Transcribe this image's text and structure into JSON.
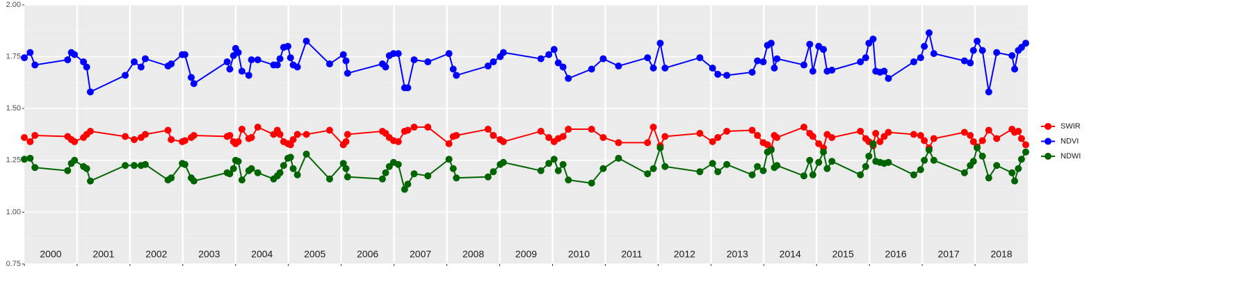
{
  "chart_data": {
    "type": "line",
    "x": [
      2000.0,
      2000.11,
      2000.2,
      2000.82,
      2000.89,
      2000.95,
      2001.12,
      2001.18,
      2001.25,
      2001.91,
      2002.08,
      2002.21,
      2002.29,
      2002.72,
      2002.78,
      2002.99,
      2003.04,
      2003.16,
      2003.21,
      2003.84,
      2003.89,
      2003.96,
      2004.0,
      2004.05,
      2004.12,
      2004.25,
      2004.3,
      2004.42,
      2004.72,
      2004.79,
      2004.84,
      2004.91,
      2004.99,
      2005.04,
      2005.09,
      2005.17,
      2005.34,
      2005.78,
      2006.04,
      2006.09,
      2006.12,
      2006.78,
      2006.84,
      2006.91,
      2006.99,
      2007.08,
      2007.2,
      2007.26,
      2007.38,
      2007.64,
      2008.04,
      2008.12,
      2008.18,
      2008.78,
      2008.88,
      2009.01,
      2009.07,
      2009.78,
      2009.93,
      2010.03,
      2010.11,
      2010.2,
      2010.3,
      2010.74,
      2010.96,
      2011.25,
      2011.8,
      2011.91,
      2012.04,
      2012.13,
      2012.79,
      2013.03,
      2013.13,
      2013.3,
      2013.78,
      2013.88,
      2013.99,
      2014.07,
      2014.14,
      2014.2,
      2014.25,
      2014.76,
      2014.87,
      2014.93,
      2015.04,
      2015.13,
      2015.2,
      2015.29,
      2015.83,
      2015.93,
      2015.99,
      2016.07,
      2016.12,
      2016.2,
      2016.28,
      2016.36,
      2016.84,
      2016.97,
      2017.04,
      2017.13,
      2017.22,
      2017.8,
      2017.91,
      2017.97,
      2018.04,
      2018.14,
      2018.26,
      2018.41,
      2018.7,
      2018.75,
      2018.82,
      2018.88,
      2018.96
    ],
    "series": [
      {
        "name": "SWIR",
        "color": "#ff0000",
        "values": [
          1.36,
          1.34,
          1.37,
          1.365,
          1.35,
          1.34,
          1.36,
          1.375,
          1.39,
          1.365,
          1.35,
          1.36,
          1.375,
          1.395,
          1.35,
          1.34,
          1.345,
          1.36,
          1.37,
          1.365,
          1.37,
          1.34,
          1.33,
          1.34,
          1.4,
          1.355,
          1.36,
          1.41,
          1.375,
          1.395,
          1.375,
          1.34,
          1.33,
          1.325,
          1.35,
          1.375,
          1.375,
          1.395,
          1.325,
          1.34,
          1.375,
          1.39,
          1.38,
          1.36,
          1.345,
          1.34,
          1.39,
          1.395,
          1.41,
          1.41,
          1.33,
          1.365,
          1.37,
          1.4,
          1.37,
          1.35,
          1.34,
          1.39,
          1.36,
          1.34,
          1.355,
          1.365,
          1.4,
          1.4,
          1.36,
          1.335,
          1.335,
          1.41,
          1.32,
          1.365,
          1.38,
          1.34,
          1.36,
          1.39,
          1.395,
          1.37,
          1.335,
          1.325,
          1.305,
          1.37,
          1.36,
          1.41,
          1.38,
          1.365,
          1.33,
          1.31,
          1.375,
          1.36,
          1.39,
          1.355,
          1.34,
          1.32,
          1.38,
          1.34,
          1.365,
          1.385,
          1.375,
          1.37,
          1.345,
          1.31,
          1.355,
          1.385,
          1.37,
          1.34,
          1.315,
          1.345,
          1.395,
          1.355,
          1.4,
          1.385,
          1.39,
          1.355,
          1.325
        ]
      },
      {
        "name": "NDVI",
        "color": "#0000ff",
        "values": [
          1.745,
          1.77,
          1.71,
          1.735,
          1.77,
          1.76,
          1.725,
          1.7,
          1.58,
          1.66,
          1.725,
          1.7,
          1.74,
          1.705,
          1.715,
          1.76,
          1.76,
          1.65,
          1.62,
          1.725,
          1.69,
          1.755,
          1.79,
          1.77,
          1.68,
          1.66,
          1.735,
          1.735,
          1.71,
          1.71,
          1.74,
          1.795,
          1.8,
          1.745,
          1.71,
          1.7,
          1.825,
          1.715,
          1.76,
          1.73,
          1.67,
          1.715,
          1.7,
          1.755,
          1.765,
          1.765,
          1.6,
          1.6,
          1.735,
          1.725,
          1.765,
          1.69,
          1.66,
          1.705,
          1.725,
          1.75,
          1.77,
          1.74,
          1.76,
          1.785,
          1.72,
          1.7,
          1.645,
          1.69,
          1.74,
          1.705,
          1.745,
          1.695,
          1.815,
          1.695,
          1.745,
          1.695,
          1.665,
          1.66,
          1.675,
          1.73,
          1.725,
          1.805,
          1.815,
          1.695,
          1.74,
          1.71,
          1.81,
          1.68,
          1.8,
          1.785,
          1.68,
          1.685,
          1.725,
          1.745,
          1.815,
          1.835,
          1.68,
          1.675,
          1.68,
          1.645,
          1.725,
          1.745,
          1.8,
          1.865,
          1.765,
          1.73,
          1.72,
          1.78,
          1.825,
          1.78,
          1.58,
          1.77,
          1.755,
          1.69,
          1.78,
          1.795,
          1.815
        ]
      },
      {
        "name": "NDWI",
        "color": "#006400",
        "values": [
          1.255,
          1.26,
          1.215,
          1.2,
          1.235,
          1.25,
          1.22,
          1.21,
          1.15,
          1.225,
          1.225,
          1.225,
          1.23,
          1.155,
          1.165,
          1.235,
          1.23,
          1.165,
          1.15,
          1.19,
          1.185,
          1.21,
          1.25,
          1.245,
          1.155,
          1.2,
          1.21,
          1.19,
          1.16,
          1.175,
          1.19,
          1.225,
          1.26,
          1.265,
          1.21,
          1.18,
          1.28,
          1.16,
          1.235,
          1.21,
          1.17,
          1.16,
          1.19,
          1.22,
          1.24,
          1.23,
          1.11,
          1.135,
          1.185,
          1.175,
          1.255,
          1.21,
          1.165,
          1.17,
          1.195,
          1.23,
          1.24,
          1.2,
          1.235,
          1.255,
          1.2,
          1.23,
          1.155,
          1.14,
          1.21,
          1.26,
          1.185,
          1.21,
          1.31,
          1.22,
          1.195,
          1.235,
          1.195,
          1.23,
          1.18,
          1.22,
          1.2,
          1.29,
          1.3,
          1.215,
          1.225,
          1.175,
          1.25,
          1.18,
          1.24,
          1.29,
          1.21,
          1.245,
          1.18,
          1.22,
          1.27,
          1.33,
          1.245,
          1.24,
          1.235,
          1.24,
          1.18,
          1.205,
          1.25,
          1.3,
          1.25,
          1.19,
          1.225,
          1.245,
          1.31,
          1.27,
          1.165,
          1.225,
          1.19,
          1.15,
          1.21,
          1.255,
          1.29
        ]
      }
    ],
    "xlim": [
      2000,
      2019
    ],
    "xticks": [
      {
        "value": 2000.5,
        "label": "2000"
      },
      {
        "value": 2001.5,
        "label": "2001"
      },
      {
        "value": 2002.5,
        "label": "2002"
      },
      {
        "value": 2003.5,
        "label": "2003"
      },
      {
        "value": 2004.5,
        "label": "2004"
      },
      {
        "value": 2005.5,
        "label": "2005"
      },
      {
        "value": 2006.5,
        "label": "2006"
      },
      {
        "value": 2007.5,
        "label": "2007"
      },
      {
        "value": 2008.5,
        "label": "2008"
      },
      {
        "value": 2009.5,
        "label": "2009"
      },
      {
        "value": 2010.5,
        "label": "2010"
      },
      {
        "value": 2011.5,
        "label": "2011"
      },
      {
        "value": 2012.5,
        "label": "2012"
      },
      {
        "value": 2013.5,
        "label": "2013"
      },
      {
        "value": 2014.5,
        "label": "2014"
      },
      {
        "value": 2015.5,
        "label": "2015"
      },
      {
        "value": 2016.5,
        "label": "2016"
      },
      {
        "value": 2017.5,
        "label": "2017"
      },
      {
        "value": 2018.5,
        "label": "2018"
      }
    ],
    "ylim": [
      0.75,
      2.0
    ],
    "yticks": [
      {
        "value": 0.75,
        "label": "0.75"
      },
      {
        "value": 1,
        "label": "1.00"
      },
      {
        "value": 1.25,
        "label": "1.25"
      },
      {
        "value": 1.5,
        "label": "1.50"
      },
      {
        "value": 1.75,
        "label": "1.75"
      },
      {
        "value": 2,
        "label": "2.00"
      }
    ],
    "grid": true,
    "legend": "right"
  }
}
